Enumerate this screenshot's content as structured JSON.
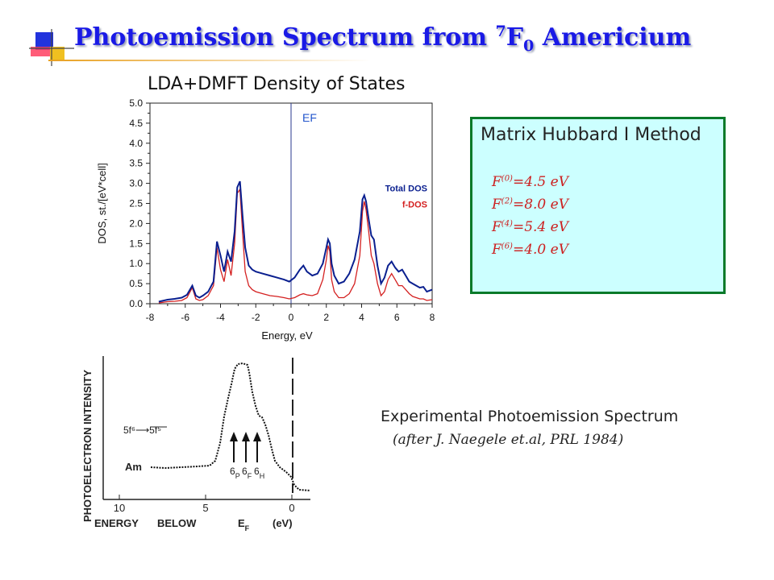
{
  "slide": {
    "title_main": "Photoemission  Spectrum from ",
    "title_sup": "7",
    "title_f": "F",
    "title_sub": "0",
    "title_tail": " Americium"
  },
  "chart_data": {
    "type": "line",
    "title": "LDA+DMFT Density of States",
    "xlabel": "Energy, eV",
    "ylabel": "DOS, st./[eV*cell]",
    "xlim": [
      -8,
      8
    ],
    "ylim": [
      0,
      5
    ],
    "xticks": [
      "-8",
      "-6",
      "-4",
      "-2",
      "0",
      "2",
      "4",
      "6",
      "8"
    ],
    "yticks": [
      "0.0",
      "0.5",
      "1.0",
      "1.5",
      "2.0",
      "2.5",
      "3.0",
      "3.5",
      "4.0",
      "4.5",
      "5.0"
    ],
    "annotations": [
      {
        "text": "EF",
        "x": 0
      }
    ],
    "legend_position": "right",
    "series": [
      {
        "name": "Total DOS",
        "color": "#0a1f8f",
        "x": [
          -7.5,
          -7,
          -6.6,
          -6.2,
          -5.9,
          -5.6,
          -5.4,
          -5.2,
          -5.0,
          -4.7,
          -4.4,
          -4.2,
          -4.0,
          -3.8,
          -3.6,
          -3.4,
          -3.2,
          -3.05,
          -2.9,
          -2.75,
          -2.6,
          -2.4,
          -2.2,
          -2,
          -1.6,
          -1.2,
          -0.8,
          -0.4,
          -0.1,
          0.2,
          0.5,
          0.7,
          0.9,
          1.2,
          1.5,
          1.8,
          2.0,
          2.1,
          2.2,
          2.3,
          2.45,
          2.7,
          3.0,
          3.3,
          3.6,
          3.9,
          4.05,
          4.15,
          4.25,
          4.4,
          4.55,
          4.7,
          4.9,
          5.1,
          5.3,
          5.5,
          5.7,
          5.9,
          6.1,
          6.3,
          6.5,
          6.7,
          6.9,
          7.1,
          7.3,
          7.5,
          7.7,
          8
        ],
        "values": [
          0.05,
          0.1,
          0.12,
          0.15,
          0.22,
          0.45,
          0.2,
          0.15,
          0.2,
          0.3,
          0.55,
          1.55,
          1.2,
          0.8,
          1.3,
          1.05,
          1.8,
          2.9,
          3.05,
          2.2,
          1.4,
          0.95,
          0.85,
          0.8,
          0.75,
          0.7,
          0.65,
          0.6,
          0.55,
          0.65,
          0.85,
          0.95,
          0.8,
          0.7,
          0.75,
          1.0,
          1.4,
          1.6,
          1.5,
          1.0,
          0.7,
          0.5,
          0.55,
          0.75,
          1.1,
          1.8,
          2.6,
          2.7,
          2.55,
          2.1,
          1.7,
          1.6,
          0.95,
          0.5,
          0.65,
          0.95,
          1.05,
          0.9,
          0.8,
          0.85,
          0.7,
          0.55,
          0.5,
          0.45,
          0.4,
          0.42,
          0.3,
          0.35
        ]
      },
      {
        "name": "f-DOS",
        "color": "#d42020",
        "x": [
          -7.5,
          -7,
          -6.6,
          -6.2,
          -5.9,
          -5.6,
          -5.4,
          -5.2,
          -5.0,
          -4.7,
          -4.4,
          -4.2,
          -4.0,
          -3.8,
          -3.6,
          -3.4,
          -3.2,
          -3.05,
          -2.9,
          -2.75,
          -2.6,
          -2.4,
          -2.2,
          -2,
          -1.6,
          -1.2,
          -0.8,
          -0.4,
          -0.1,
          0.2,
          0.5,
          0.7,
          0.9,
          1.2,
          1.5,
          1.8,
          2.0,
          2.1,
          2.2,
          2.3,
          2.45,
          2.7,
          3.0,
          3.3,
          3.6,
          3.9,
          4.05,
          4.15,
          4.25,
          4.4,
          4.55,
          4.7,
          4.9,
          5.1,
          5.3,
          5.5,
          5.7,
          5.9,
          6.1,
          6.3,
          6.5,
          6.7,
          6.9,
          7.1,
          7.3,
          7.5,
          7.7,
          8
        ],
        "values": [
          0.02,
          0.05,
          0.06,
          0.08,
          0.15,
          0.4,
          0.12,
          0.08,
          0.1,
          0.2,
          0.45,
          1.4,
          0.85,
          0.55,
          1.1,
          0.7,
          1.5,
          2.75,
          2.85,
          1.8,
          0.8,
          0.45,
          0.35,
          0.3,
          0.25,
          0.2,
          0.18,
          0.15,
          0.12,
          0.15,
          0.22,
          0.25,
          0.22,
          0.2,
          0.25,
          0.6,
          1.1,
          1.45,
          1.3,
          0.6,
          0.3,
          0.15,
          0.15,
          0.25,
          0.5,
          1.2,
          2.3,
          2.55,
          2.35,
          1.8,
          1.2,
          1.0,
          0.5,
          0.2,
          0.3,
          0.6,
          0.75,
          0.6,
          0.45,
          0.45,
          0.35,
          0.25,
          0.18,
          0.15,
          0.12,
          0.12,
          0.08,
          0.1
        ]
      }
    ]
  },
  "hubbard": {
    "title": "Matrix Hubbard I Method",
    "params": [
      {
        "label": "F",
        "sup": "(0)",
        "value": "=4.5 eV"
      },
      {
        "label": "F",
        "sup": "(2)",
        "value": "=8.0 eV"
      },
      {
        "label": "F",
        "sup": "(4)",
        "value": "=5.4 eV"
      },
      {
        "label": "F",
        "sup": "(6)",
        "value": "=4.0 eV"
      }
    ]
  },
  "experiment": {
    "title": "Experimental Photoemission Spectrum",
    "subtitle": "(after J. Naegele et.al, PRL 1984)",
    "ylabel": "PHOTOELECTRON   INTENSITY",
    "xlabel_energy": "ENERGY",
    "xlabel_below": "BELOW",
    "xlabel_e": "E",
    "xlabel_sub": "F",
    "xlabel_unit": "(eV)",
    "ticks": [
      "10",
      "5",
      "0"
    ],
    "sample": "Am",
    "transition": "5f⁶⟶5f⁵",
    "peak_labels": [
      {
        "main": "6",
        "sub": "P"
      },
      {
        "main": "6",
        "sub": "F"
      },
      {
        "main": "6",
        "sub": "H"
      }
    ]
  }
}
